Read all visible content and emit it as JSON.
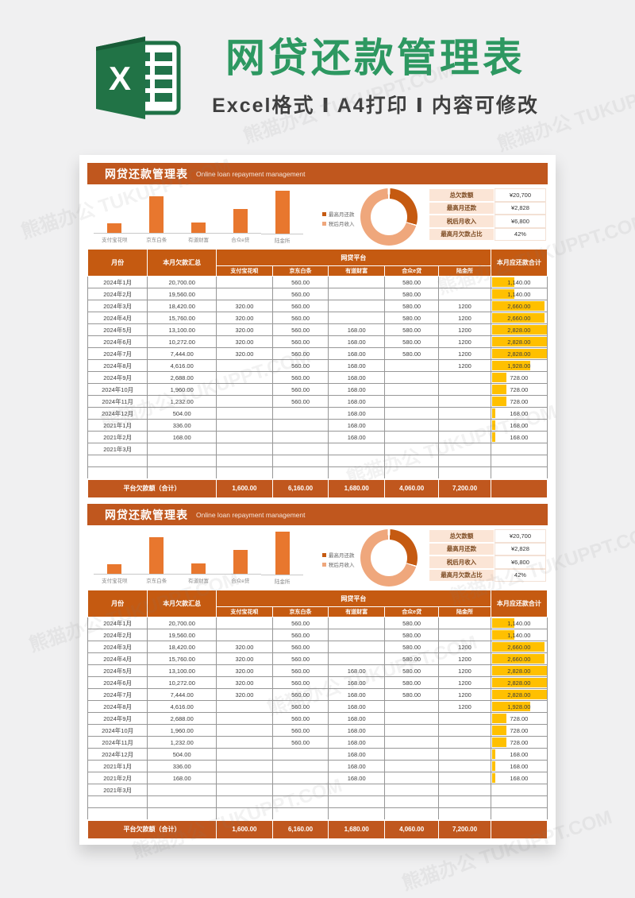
{
  "watermark": "熊猫办公 TUKUPPT.COM",
  "header": {
    "logo_letter": "X",
    "title": "网贷还款管理表",
    "subtitle": "Excel格式 Ⅰ A4打印 Ⅰ 内容可修改"
  },
  "colors": {
    "title_green": "#2d9861",
    "logo_green": "#217346",
    "logo_green_dark": "#185c37",
    "banner_orange": "#c0571e",
    "table_header_orange": "#c55a11",
    "bar_orange": "#e8772e",
    "databar_gold": "#ffc000",
    "stats_label_bg": "#fbe5d6",
    "donut_dark": "#c55a11",
    "donut_light": "#efa77c"
  },
  "report": {
    "banner_title": "网贷还款管理表",
    "banner_subtitle": "Online loan repayment management",
    "stats": [
      {
        "label": "总欠款额",
        "value": "¥20,700"
      },
      {
        "label": "最高月还款",
        "value": "¥2,828"
      },
      {
        "label": "税后月收入",
        "value": "¥6,800"
      },
      {
        "label": "最高月欠款占比",
        "value": "42%"
      }
    ],
    "table": {
      "col_month": "月份",
      "col_debt_total": "本月欠款汇总",
      "col_platform_group": "网贷平台",
      "platforms": [
        "支付宝花呗",
        "京东白条",
        "有道财富",
        "合众e贷",
        "陆金所"
      ],
      "col_repay_total": "本月应还款合计",
      "rows": [
        {
          "month": "2024年1月",
          "debt": "20,700.00",
          "platforms": [
            "",
            "560.00",
            "",
            "580.00",
            ""
          ],
          "total": "1,140.00",
          "total_value": 1140
        },
        {
          "month": "2024年2月",
          "debt": "19,560.00",
          "platforms": [
            "",
            "560.00",
            "",
            "580.00",
            ""
          ],
          "total": "1,140.00",
          "total_value": 1140
        },
        {
          "month": "2024年3月",
          "debt": "18,420.00",
          "platforms": [
            "320.00",
            "560.00",
            "",
            "580.00",
            "1200"
          ],
          "total": "2,660.00",
          "total_value": 2660
        },
        {
          "month": "2024年4月",
          "debt": "15,760.00",
          "platforms": [
            "320.00",
            "560.00",
            "",
            "580.00",
            "1200"
          ],
          "total": "2,660.00",
          "total_value": 2660
        },
        {
          "month": "2024年5月",
          "debt": "13,100.00",
          "platforms": [
            "320.00",
            "560.00",
            "168.00",
            "580.00",
            "1200"
          ],
          "total": "2,828.00",
          "total_value": 2828
        },
        {
          "month": "2024年6月",
          "debt": "10,272.00",
          "platforms": [
            "320.00",
            "560.00",
            "168.00",
            "580.00",
            "1200"
          ],
          "total": "2,828.00",
          "total_value": 2828
        },
        {
          "month": "2024年7月",
          "debt": "7,444.00",
          "platforms": [
            "320.00",
            "560.00",
            "168.00",
            "580.00",
            "1200"
          ],
          "total": "2,828.00",
          "total_value": 2828
        },
        {
          "month": "2024年8月",
          "debt": "4,616.00",
          "platforms": [
            "",
            "560.00",
            "168.00",
            "",
            "1200"
          ],
          "total": "1,928.00",
          "total_value": 1928
        },
        {
          "month": "2024年9月",
          "debt": "2,688.00",
          "platforms": [
            "",
            "560.00",
            "168.00",
            "",
            ""
          ],
          "total": "728.00",
          "total_value": 728
        },
        {
          "month": "2024年10月",
          "debt": "1,960.00",
          "platforms": [
            "",
            "560.00",
            "168.00",
            "",
            ""
          ],
          "total": "728.00",
          "total_value": 728
        },
        {
          "month": "2024年11月",
          "debt": "1,232.00",
          "platforms": [
            "",
            "560.00",
            "168.00",
            "",
            ""
          ],
          "total": "728.00",
          "total_value": 728
        },
        {
          "month": "2024年12月",
          "debt": "504.00",
          "platforms": [
            "",
            "",
            "168.00",
            "",
            ""
          ],
          "total": "168.00",
          "total_value": 168
        },
        {
          "month": "2021年1月",
          "debt": "336.00",
          "platforms": [
            "",
            "",
            "168.00",
            "",
            ""
          ],
          "total": "168.00",
          "total_value": 168
        },
        {
          "month": "2021年2月",
          "debt": "168.00",
          "platforms": [
            "",
            "",
            "168.00",
            "",
            ""
          ],
          "total": "168.00",
          "total_value": 168
        },
        {
          "month": "2021年3月",
          "debt": "",
          "platforms": [
            "",
            "",
            "",
            "",
            ""
          ],
          "total": "",
          "total_value": 0
        },
        {
          "month": "",
          "debt": "",
          "platforms": [
            "",
            "",
            "",
            "",
            ""
          ],
          "total": "",
          "total_value": 0
        },
        {
          "month": "",
          "debt": "",
          "platforms": [
            "",
            "",
            "",
            "",
            ""
          ],
          "total": "",
          "total_value": 0
        }
      ],
      "footer_label": "平台欠款额（合计）",
      "footer_values": [
        "1,600.00",
        "6,160.00",
        "1,680.00",
        "4,060.00",
        "7,200.00"
      ]
    }
  },
  "chart_data": [
    {
      "type": "bar",
      "title": "各平台欠款额",
      "categories": [
        "支付宝花呗",
        "京东白条",
        "有道财富",
        "合众e贷",
        "陆金所"
      ],
      "values": [
        1600,
        6160,
        1680,
        4060,
        7200
      ],
      "xlabel": "",
      "ylabel": "",
      "ylim": [
        0,
        7200
      ],
      "grid": false,
      "legend": false,
      "bar_color": "#e8772e"
    },
    {
      "type": "pie",
      "donut": true,
      "labels": [
        "最高月还款",
        "税后月收入"
      ],
      "values": [
        2828,
        6800
      ],
      "colors": [
        "#c55a11",
        "#efa77c"
      ],
      "legend_position": "left"
    }
  ]
}
